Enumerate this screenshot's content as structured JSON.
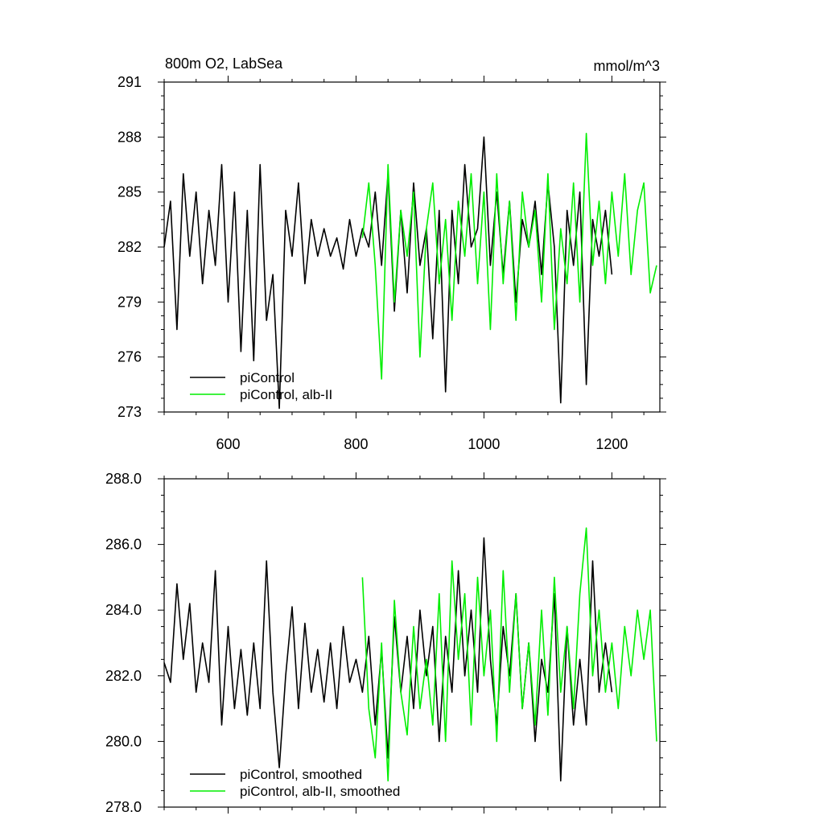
{
  "chart_data": [
    {
      "type": "line",
      "title_left": "800m O2, LabSea",
      "title_right": "mmol/m^3",
      "xlim": [
        500,
        1275
      ],
      "ylim": [
        273,
        291
      ],
      "x_ticks": [
        600,
        800,
        1000,
        1200
      ],
      "x_tick_labels": [
        "600",
        "800",
        "1000",
        "1200"
      ],
      "y_ticks": [
        273,
        276,
        279,
        282,
        285,
        288,
        291
      ],
      "y_tick_labels": [
        "273",
        "276",
        "279",
        "282",
        "285",
        "288",
        "291"
      ],
      "grid": false,
      "legend_position": "bottom-left",
      "series": [
        {
          "name": "piControl",
          "color": "#000000",
          "x": [
            500,
            510,
            520,
            530,
            540,
            550,
            560,
            570,
            580,
            590,
            600,
            610,
            620,
            630,
            640,
            650,
            660,
            670,
            680,
            690,
            700,
            710,
            720,
            730,
            740,
            750,
            760,
            770,
            780,
            790,
            800,
            810,
            820,
            830,
            840,
            850,
            860,
            870,
            880,
            890,
            900,
            910,
            920,
            930,
            940,
            950,
            960,
            970,
            980,
            990,
            1000,
            1010,
            1020,
            1030,
            1040,
            1050,
            1060,
            1070,
            1080,
            1090,
            1100,
            1110,
            1120,
            1130,
            1140,
            1150,
            1160,
            1170,
            1180,
            1190,
            1200
          ],
          "y": [
            282.0,
            284.5,
            277.5,
            286.0,
            281.5,
            285.0,
            280.0,
            284.0,
            281.0,
            286.5,
            279.0,
            285.0,
            276.3,
            284.0,
            275.8,
            286.5,
            278.0,
            280.5,
            273.2,
            284.0,
            281.5,
            285.5,
            280.0,
            283.5,
            281.5,
            283.0,
            281.5,
            282.5,
            280.8,
            283.5,
            281.5,
            283.0,
            282.0,
            285.0,
            281.0,
            286.0,
            278.5,
            284.0,
            279.5,
            285.5,
            281.0,
            283.0,
            277.0,
            284.0,
            274.1,
            284.0,
            280.0,
            286.5,
            282.0,
            283.0,
            288.0,
            281.0,
            285.0,
            280.5,
            284.5,
            279.0,
            283.5,
            282.0,
            284.5,
            280.5,
            285.5,
            282.0,
            273.5,
            284.0,
            281.0,
            285.0,
            274.5,
            283.5,
            281.5,
            284.0,
            280.5
          ]
        },
        {
          "name": "piControl, alb-II",
          "color": "#00ee00",
          "x": [
            810,
            820,
            830,
            840,
            850,
            860,
            870,
            880,
            890,
            900,
            910,
            920,
            930,
            940,
            950,
            960,
            970,
            980,
            990,
            1000,
            1010,
            1020,
            1030,
            1040,
            1050,
            1060,
            1070,
            1080,
            1090,
            1100,
            1110,
            1120,
            1130,
            1140,
            1150,
            1160,
            1170,
            1180,
            1190,
            1200,
            1210,
            1220,
            1230,
            1240,
            1250,
            1260,
            1270
          ],
          "y": [
            282.5,
            285.5,
            281.0,
            274.8,
            286.5,
            279.0,
            284.0,
            281.5,
            285.0,
            276.0,
            283.0,
            285.5,
            280.0,
            283.5,
            278.0,
            284.5,
            281.5,
            286.0,
            280.0,
            285.0,
            277.5,
            286.0,
            280.0,
            284.5,
            278.0,
            285.0,
            282.0,
            284.0,
            279.0,
            286.0,
            277.5,
            283.0,
            280.0,
            285.5,
            279.0,
            288.2,
            281.0,
            284.5,
            280.0,
            285.0,
            281.5,
            286.0,
            280.5,
            284.0,
            285.5,
            279.5,
            281.0
          ]
        }
      ]
    },
    {
      "type": "line",
      "xlim": [
        500,
        1275
      ],
      "ylim": [
        278.0,
        288.0
      ],
      "x_ticks": [
        600,
        800,
        1000,
        1200
      ],
      "x_tick_labels": [],
      "y_ticks": [
        278.0,
        280.0,
        282.0,
        284.0,
        286.0,
        288.0
      ],
      "y_tick_labels": [
        "278.0",
        "280.0",
        "282.0",
        "284.0",
        "286.0",
        "288.0"
      ],
      "grid": false,
      "legend_position": "bottom-left",
      "series": [
        {
          "name": "piControl, smoothed",
          "color": "#000000",
          "x": [
            500,
            510,
            520,
            530,
            540,
            550,
            560,
            570,
            580,
            590,
            600,
            610,
            620,
            630,
            640,
            650,
            660,
            670,
            680,
            690,
            700,
            710,
            720,
            730,
            740,
            750,
            760,
            770,
            780,
            790,
            800,
            810,
            820,
            830,
            840,
            850,
            860,
            870,
            880,
            890,
            900,
            910,
            920,
            930,
            940,
            950,
            960,
            970,
            980,
            990,
            1000,
            1010,
            1020,
            1030,
            1040,
            1050,
            1060,
            1070,
            1080,
            1090,
            1100,
            1110,
            1120,
            1130,
            1140,
            1150,
            1160,
            1170,
            1180,
            1190,
            1200
          ],
          "y": [
            282.4,
            281.8,
            284.8,
            282.5,
            284.2,
            281.5,
            283.0,
            281.8,
            285.2,
            280.5,
            283.5,
            281.0,
            282.8,
            280.8,
            283.0,
            281.0,
            285.5,
            281.5,
            279.2,
            282.0,
            284.1,
            281.0,
            283.6,
            281.5,
            282.8,
            281.2,
            283.0,
            281.0,
            283.5,
            281.8,
            282.5,
            281.5,
            283.2,
            280.5,
            282.8,
            279.5,
            283.8,
            281.5,
            283.2,
            281.0,
            284.0,
            282.0,
            283.5,
            280.0,
            283.2,
            281.5,
            285.2,
            282.0,
            284.0,
            281.5,
            286.2,
            282.5,
            280.5,
            283.5,
            282.0,
            284.5,
            281.0,
            283.0,
            280.0,
            282.5,
            281.5,
            284.5,
            278.8,
            283.5,
            280.5,
            282.5,
            280.5,
            285.5,
            281.5,
            283.0,
            281.5
          ]
        },
        {
          "name": "piControl, alb-II, smoothed",
          "color": "#00ee00",
          "x": [
            810,
            820,
            830,
            840,
            850,
            860,
            870,
            880,
            890,
            900,
            910,
            920,
            930,
            940,
            950,
            960,
            970,
            980,
            990,
            1000,
            1010,
            1020,
            1030,
            1040,
            1050,
            1060,
            1070,
            1080,
            1090,
            1100,
            1110,
            1120,
            1130,
            1140,
            1150,
            1160,
            1170,
            1180,
            1190,
            1200,
            1210,
            1220,
            1230,
            1240,
            1250,
            1260,
            1270
          ],
          "y": [
            285.0,
            281.0,
            279.5,
            283.0,
            278.8,
            284.3,
            281.5,
            280.2,
            283.5,
            281.0,
            282.5,
            280.5,
            284.5,
            280.0,
            285.5,
            282.5,
            284.5,
            280.5,
            285.0,
            282.0,
            284.0,
            280.0,
            285.2,
            281.5,
            284.5,
            281.0,
            283.0,
            280.5,
            284.0,
            280.8,
            285.0,
            281.5,
            283.5,
            281.0,
            284.5,
            286.5,
            282.0,
            284.0,
            281.5,
            283.0,
            281.0,
            283.5,
            282.0,
            284.0,
            282.5,
            284.0,
            280.0
          ]
        }
      ]
    }
  ]
}
